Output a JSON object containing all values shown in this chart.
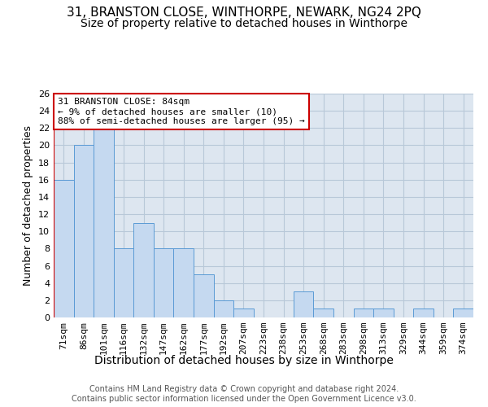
{
  "title1": "31, BRANSTON CLOSE, WINTHORPE, NEWARK, NG24 2PQ",
  "title2": "Size of property relative to detached houses in Winthorpe",
  "xlabel": "Distribution of detached houses by size in Winthorpe",
  "ylabel": "Number of detached properties",
  "categories": [
    "71sqm",
    "86sqm",
    "101sqm",
    "116sqm",
    "132sqm",
    "147sqm",
    "162sqm",
    "177sqm",
    "192sqm",
    "207sqm",
    "223sqm",
    "238sqm",
    "253sqm",
    "268sqm",
    "283sqm",
    "298sqm",
    "313sqm",
    "329sqm",
    "344sqm",
    "359sqm",
    "374sqm"
  ],
  "values": [
    16,
    20,
    22,
    8,
    11,
    8,
    8,
    5,
    2,
    1,
    0,
    0,
    3,
    1,
    0,
    1,
    1,
    0,
    1,
    0,
    1
  ],
  "bar_color": "#c5d9f0",
  "bar_edge_color": "#5b9bd5",
  "annotation_line1": "31 BRANSTON CLOSE: 84sqm",
  "annotation_line2": "← 9% of detached houses are smaller (10)",
  "annotation_line3": "88% of semi-detached houses are larger (95) →",
  "annotation_box_color": "#ffffff",
  "annotation_box_edge_color": "#cc0000",
  "vline_color": "#cc0000",
  "ylim": [
    0,
    26
  ],
  "yticks": [
    0,
    2,
    4,
    6,
    8,
    10,
    12,
    14,
    16,
    18,
    20,
    22,
    24,
    26
  ],
  "bg_color": "#ffffff",
  "axes_bg_color": "#dde6f0",
  "grid_color": "#b8c8d8",
  "footer_text": "Contains HM Land Registry data © Crown copyright and database right 2024.\nContains public sector information licensed under the Open Government Licence v3.0.",
  "title1_fontsize": 11,
  "title2_fontsize": 10,
  "xlabel_fontsize": 10,
  "ylabel_fontsize": 9,
  "tick_fontsize": 8,
  "annotation_fontsize": 8,
  "footer_fontsize": 7
}
